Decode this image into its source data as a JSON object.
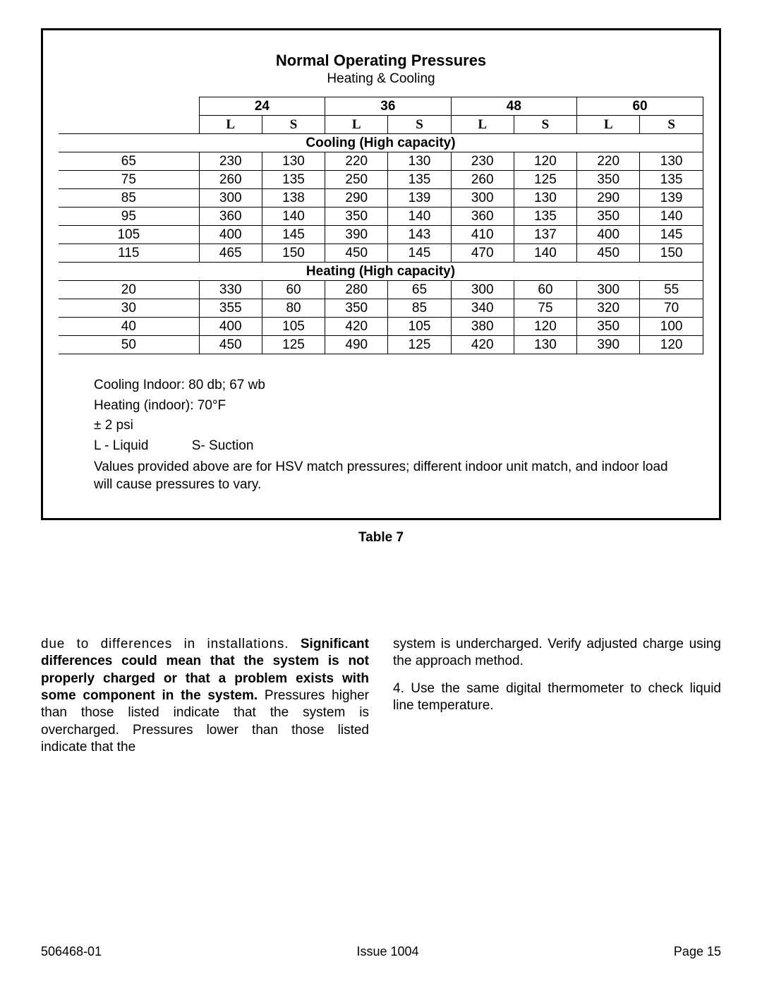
{
  "title": "Normal Operating Pressures",
  "subtitle": "Heating & Cooling",
  "column_groups": [
    "24",
    "36",
    "48",
    "60"
  ],
  "ls_labels": {
    "L": "L",
    "S": "S"
  },
  "section_cooling": "Cooling (High capacity)",
  "section_heating": "Heating (High capacity)",
  "cooling_rows": [
    {
      "t": "65",
      "v": [
        "230",
        "130",
        "220",
        "130",
        "230",
        "120",
        "220",
        "130"
      ]
    },
    {
      "t": "75",
      "v": [
        "260",
        "135",
        "250",
        "135",
        "260",
        "125",
        "350",
        "135"
      ]
    },
    {
      "t": "85",
      "v": [
        "300",
        "138",
        "290",
        "139",
        "300",
        "130",
        "290",
        "139"
      ]
    },
    {
      "t": "95",
      "v": [
        "360",
        "140",
        "350",
        "140",
        "360",
        "135",
        "350",
        "140"
      ]
    },
    {
      "t": "105",
      "v": [
        "400",
        "145",
        "390",
        "143",
        "410",
        "137",
        "400",
        "145"
      ]
    },
    {
      "t": "115",
      "v": [
        "465",
        "150",
        "450",
        "145",
        "470",
        "140",
        "450",
        "150"
      ]
    }
  ],
  "heating_rows": [
    {
      "t": "20",
      "v": [
        "330",
        "60",
        "280",
        "65",
        "300",
        "60",
        "300",
        "55"
      ]
    },
    {
      "t": "30",
      "v": [
        "355",
        "80",
        "350",
        "85",
        "340",
        "75",
        "320",
        "70"
      ]
    },
    {
      "t": "40",
      "v": [
        "400",
        "105",
        "420",
        "105",
        "380",
        "120",
        "350",
        "100"
      ]
    },
    {
      "t": "50",
      "v": [
        "450",
        "125",
        "490",
        "125",
        "420",
        "130",
        "390",
        "120"
      ]
    }
  ],
  "notes": {
    "cooling_indoor": "Cooling Indoor:  80 db; 67 wb",
    "heating_indoor": "Heating (indoor):  70°F",
    "tolerance": "± 2 psi",
    "legend_L": "L - Liquid",
    "legend_S": "S- Suction",
    "disclaimer": "Values provided above are for HSV match pressures; different indoor unit match, and indoor load will cause pressures to vary."
  },
  "table_label": "Table 7",
  "left_column": {
    "lead": "due to differences in installations.  ",
    "bold": "Significant differences could mean that the system is not properly charged or that a problem exists with some component in the system.",
    "rest": "  Pressures higher than those listed indicate that the system is overcharged.  Pressures lower than those listed indicate that the"
  },
  "right_column": {
    "p1": "system is undercharged.  Verify adjusted charge using the approach method.",
    "p2": "4.  Use the same digital thermometer to check liquid line temperature."
  },
  "footer": {
    "left": "506468-01",
    "center": "Issue 1004",
    "right": "Page 15"
  }
}
